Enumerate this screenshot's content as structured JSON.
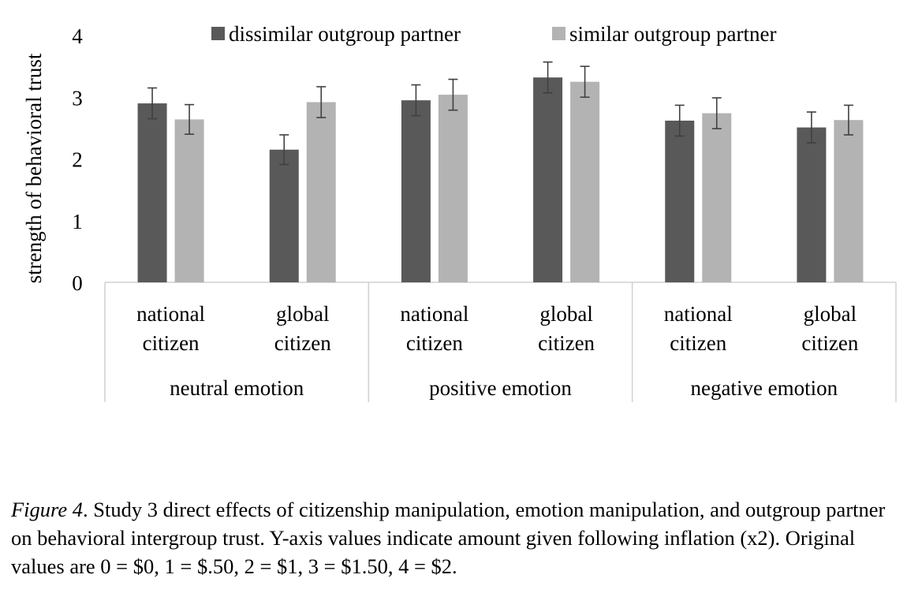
{
  "chart_data": {
    "type": "bar",
    "ylabel": "strength of behavioral trust",
    "ylim": [
      0,
      4
    ],
    "yticks": [
      "0",
      "1",
      "2",
      "3",
      "4"
    ],
    "grid": false,
    "legend_position": "top",
    "groups": [
      {
        "label": "neutral emotion",
        "categories": [
          {
            "line1": "national",
            "line2": "citizen"
          },
          {
            "line1": "global",
            "line2": "citizen"
          }
        ]
      },
      {
        "label": "positive emotion",
        "categories": [
          {
            "line1": "national",
            "line2": "citizen"
          },
          {
            "line1": "global",
            "line2": "citizen"
          }
        ]
      },
      {
        "label": "negative emotion",
        "categories": [
          {
            "line1": "national",
            "line2": "citizen"
          },
          {
            "line1": "global",
            "line2": "citizen"
          }
        ]
      }
    ],
    "series": [
      {
        "name": "dissimilar outgroup partner",
        "color": "#595959",
        "values": [
          2.9,
          2.15,
          2.95,
          3.32,
          2.62,
          2.51
        ],
        "errors": [
          0.25,
          0.24,
          0.25,
          0.25,
          0.25,
          0.25
        ]
      },
      {
        "name": "similar outgroup partner",
        "color": "#b3b3b3",
        "values": [
          2.64,
          2.92,
          3.04,
          3.25,
          2.74,
          2.63
        ],
        "errors": [
          0.24,
          0.25,
          0.25,
          0.25,
          0.25,
          0.24
        ]
      }
    ]
  },
  "caption": {
    "label": "Figure 4",
    "text": ". Study 3 direct effects of citizenship manipulation, emotion manipulation, and outgroup partner on behavioral intergroup trust. Y-axis values indicate amount given following inflation (x2). Original values are 0 = $0, 1 = $.50, 2 = $1, 3 = $1.50, 4 = $2."
  }
}
